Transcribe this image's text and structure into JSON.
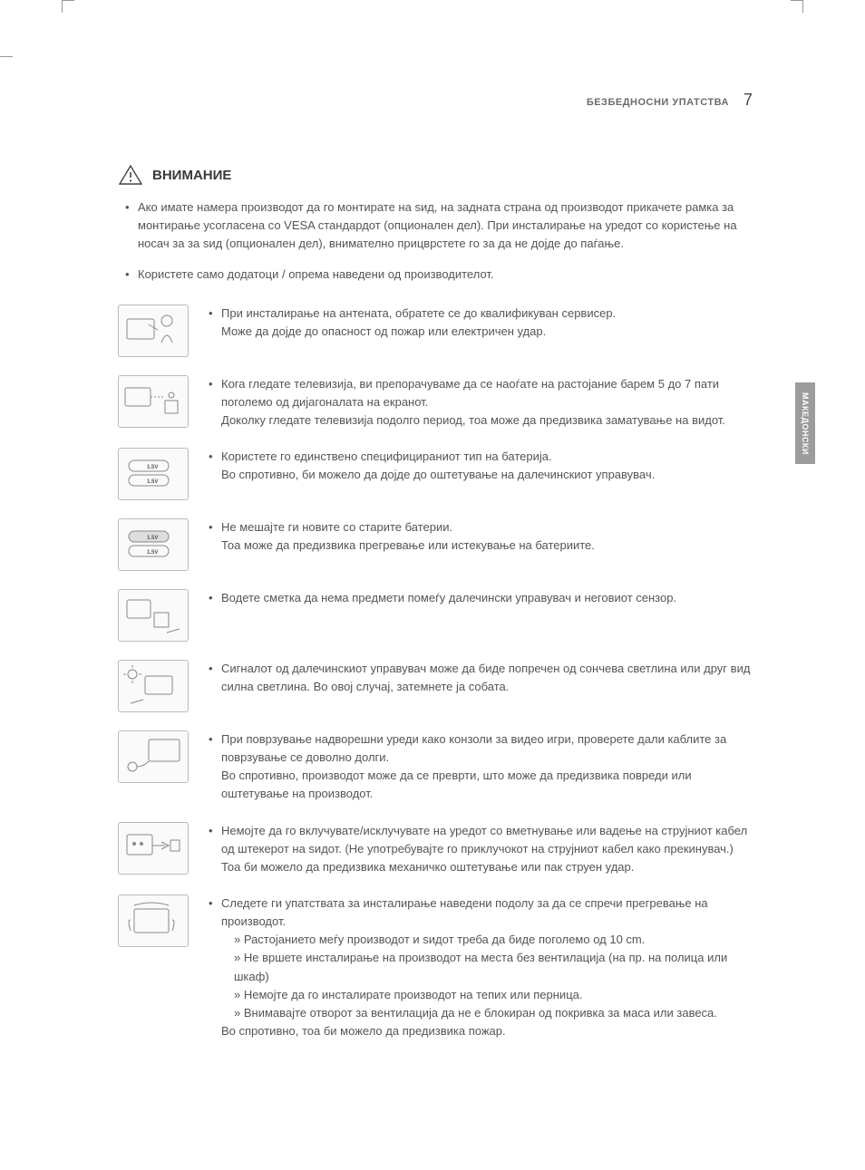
{
  "header": {
    "section": "БЕЗБЕДНОСНИ УПАТСТВА",
    "page_number": "7"
  },
  "side_tab": "МАКЕДОНСКИ",
  "caution": {
    "title": "ВНИМАНИЕ",
    "top_bullets": [
      "Ако имате намера производот да го монтирате на ѕид, на задната страна од производот прикачете рамка за монтирање усогласена со VESA стандардот (опционален дел). При инсталирање на уредот со користење на носач за за ѕид (опционален дел), внимателно прицврстете го за да не дојде до паѓање.",
      "Користете само додатоци / опрема наведени од производителот."
    ]
  },
  "items": [
    {
      "icon": "installer",
      "lines": [
        "При инсталирање на антената, обратете се до квалификуван сервисер.",
        "Може да дојде до опасност од пожар или електричен удар."
      ]
    },
    {
      "icon": "distance",
      "lines": [
        "Кога гледате телевизија, ви препорачуваме да се наоѓате на растојание барем 5 до 7 пати поголемо од дијагоналата на екранот.",
        "Доколку гледате телевизија подолго период, тоа може да предизвика заматување на видот."
      ]
    },
    {
      "icon": "batteries-same",
      "lines": [
        "Користете го единствено специфицираниот тип на батерија.",
        "Во спротивно, би можело да дојде до оштетување на далечинскиот управувач."
      ]
    },
    {
      "icon": "batteries-mixed",
      "lines": [
        "Не мешајте ги новите со старите батерии.",
        "Тоа може да предизвика прегревање или истекување на батериите."
      ]
    },
    {
      "icon": "remote-path",
      "lines": [
        "Водете сметка да нема предмети помеѓу далечински управувач и неговиот сензор."
      ]
    },
    {
      "icon": "sunlight",
      "lines": [
        "Сигналот од далечинскиот управувач може да биде попречен од сончева светлина или друг вид силна светлина. Во овој случај, затемнете ја собата."
      ]
    },
    {
      "icon": "console-cable",
      "lines": [
        "При поврзување надворешни уреди како конзоли за видео игри, проверете дали каблите за поврзување се доволно долги.",
        "Во спротивно, производот може да се преврти, што може да предизвика повреди или оштетување на производот."
      ]
    },
    {
      "icon": "plug-switch",
      "lines": [
        "Немојте да го вклучувате/исклучувате на уредот со вметнување или вадење на струјниот кабел од штекерот на ѕидот. (Не употребувајте го приклучокот на струјниот кабел како прекинувач.)",
        "Тоа би можело да предизвика механичко оштетување или пак струен удар."
      ]
    },
    {
      "icon": "ventilation",
      "lead": "Следете ги упатствата за инсталирање наведени подолу за да се спречи прегревање на производот.",
      "subs": [
        "» Растојанието меѓу производот и ѕидот треба да биде поголемо од 10 cm.",
        "» Не вршете инсталирање на производот на места без вентилација (на пр. на полица или шкаф)",
        "» Немојте да го инсталирате производот на тепих или перница.",
        "» Внимавајте отворот за вентилација да не е блокиран од покривка за маса или завеса."
      ],
      "tail": "Во спротивно, тоа би можело да предизвика пожар."
    }
  ]
}
